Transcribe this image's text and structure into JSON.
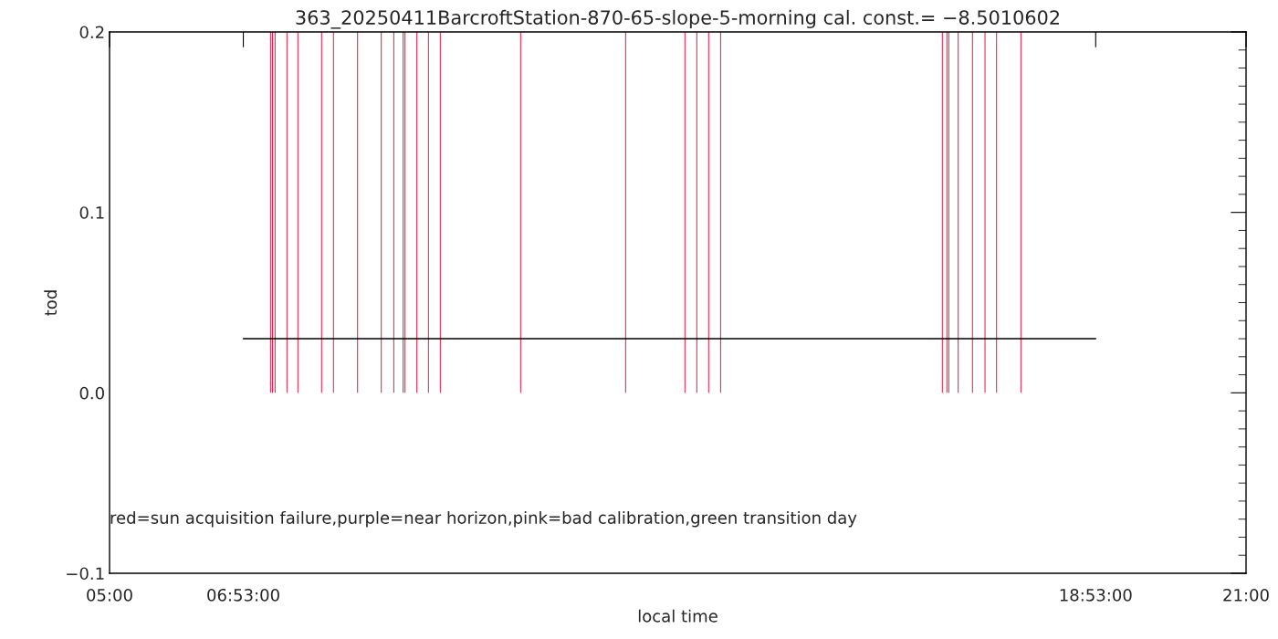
{
  "chart_data": {
    "type": "bar",
    "title": "363_20250411BarcroftStation-870-65-slope-5-morning cal. const.= −8.5010602",
    "xlabel": "local time",
    "ylabel": "tod",
    "series": [
      {
        "color": "#f00030",
        "x": [
          7.266,
          7.295,
          7.33,
          7.497,
          7.651,
          7.985,
          8.152,
          8.492,
          8.826,
          9.001,
          9.134,
          9.16,
          9.327,
          9.489,
          9.656,
          10.787,
          12.265,
          13.1,
          13.267,
          13.434,
          13.602,
          16.724,
          16.788,
          16.814,
          16.948,
          17.148,
          17.325,
          17.488,
          17.83
        ],
        "values": [
          0.2,
          0.2,
          0.2,
          0.2,
          0.2,
          0.2,
          0.2,
          0.2,
          0.2,
          0.2,
          0.2,
          0.2,
          0.2,
          0.2,
          0.2,
          0.2,
          0.2,
          0.2,
          0.2,
          0.2,
          0.2,
          0.2,
          0.2,
          0.2,
          0.2,
          0.2,
          0.2,
          0.2,
          0.2
        ]
      },
      {
        "type": "line",
        "color": "#000000",
        "x": [
          6.8833,
          18.8833
        ],
        "values": [
          0.03,
          0.03
        ]
      }
    ],
    "xlim": [
      5,
      21
    ],
    "xticks": [
      {
        "value": 5,
        "label": "05:00"
      },
      {
        "value": 6.8833,
        "label": "06:53:00"
      },
      {
        "value": 18.8833,
        "label": "18:53:00"
      },
      {
        "value": 21,
        "label": "21:00"
      }
    ],
    "ylim": [
      -0.1,
      0.2
    ],
    "yticks": [
      {
        "value": -0.1,
        "label": "−0.1"
      },
      {
        "value": 0.0,
        "label": "0.0"
      },
      {
        "value": 0.1,
        "label": "0.1"
      },
      {
        "value": 0.2,
        "label": "0.2"
      }
    ],
    "grid": false,
    "legend": false,
    "annotations": [
      "red=sun acquisition failure,purple=near horizon,pink=bad calibration,green transition day"
    ]
  }
}
